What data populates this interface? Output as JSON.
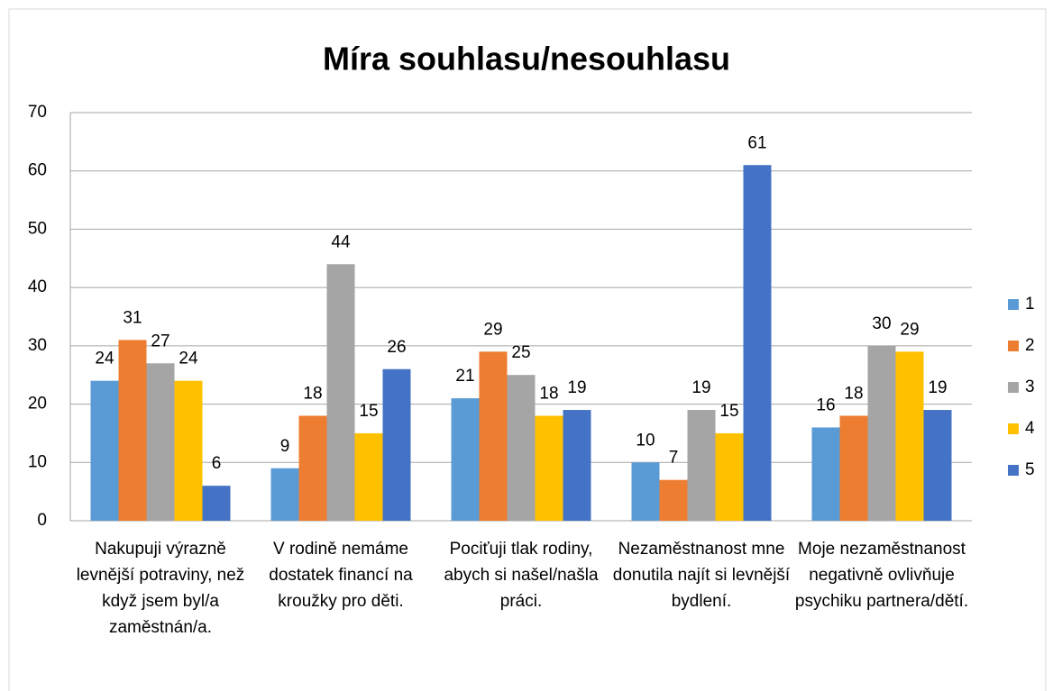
{
  "chart_data": {
    "type": "bar",
    "title": "Míra souhlasu/nesouhlasu",
    "categories": [
      "Nakupuji výrazně levnější potraviny, než když jsem byl/a zaměstnán/a.",
      "V rodině nemáme dostatek financí na kroužky pro děti.",
      "Pociťuji tlak rodiny, abych si našel/našla práci.",
      "Nezaměstnanost mne donutila najít si levnější bydlení.",
      "Moje nezaměstnanost negativně ovlivňuje psychiku partnera/dětí."
    ],
    "series": [
      {
        "name": "1",
        "color": "#5b9bd5",
        "values": [
          24,
          9,
          21,
          10,
          16
        ]
      },
      {
        "name": "2",
        "color": "#ed7d31",
        "values": [
          31,
          18,
          29,
          7,
          18
        ]
      },
      {
        "name": "3",
        "color": "#a5a5a5",
        "values": [
          27,
          44,
          25,
          19,
          30
        ]
      },
      {
        "name": "4",
        "color": "#ffc000",
        "values": [
          24,
          15,
          18,
          15,
          29
        ]
      },
      {
        "name": "5",
        "color": "#4472c4",
        "values": [
          6,
          26,
          19,
          61,
          19
        ]
      }
    ],
    "ylim": [
      0,
      70
    ],
    "yticks": [
      0,
      10,
      20,
      30,
      40,
      50,
      60,
      70
    ],
    "grid": true,
    "legend": "right"
  }
}
